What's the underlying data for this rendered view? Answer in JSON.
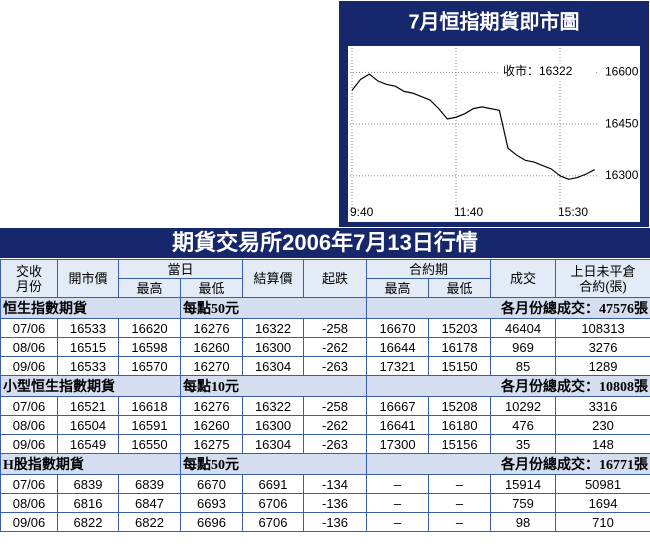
{
  "chart_data": {
    "type": "line",
    "title": "7月恒指期貨即市圖",
    "annotation": "收市：16322",
    "categories": [
      "9:40",
      null,
      null,
      null,
      null,
      null,
      null,
      null,
      null,
      null,
      null,
      null,
      "11:40",
      null,
      null,
      null,
      null,
      null,
      null,
      null,
      null,
      null,
      null,
      null,
      "15:30",
      null,
      null,
      null,
      null
    ],
    "series": [
      {
        "color": "#000000",
        "values": [
          16548,
          16580,
          16595,
          16575,
          16565,
          16560,
          16545,
          16540,
          16530,
          16520,
          16495,
          16465,
          16470,
          16480,
          16495,
          16500,
          16495,
          16490,
          16380,
          16360,
          16345,
          16340,
          16330,
          16320,
          16300,
          16290,
          16295,
          16305,
          16318
        ]
      }
    ],
    "ylim": [
      16230,
      16665
    ],
    "yticks": [
      16300,
      16450,
      16600
    ],
    "grid": true
  },
  "table": {
    "title": "期貨交易所2006年7月13日行情",
    "header": {
      "top": [
        "交收\n月份",
        "開市價",
        "當日",
        "結算價",
        "起跌",
        "合約期",
        "成交",
        "上日未平倉\n合約(張)"
      ],
      "sub": [
        "最高",
        "最低",
        "最高",
        "最低"
      ]
    },
    "sections": [
      {
        "name": "恒生指數期貨",
        "point": "每點50元",
        "total": "各月份總成交：47576張",
        "rows": [
          [
            "07/06",
            16533,
            16620,
            16276,
            16322,
            -258,
            16670,
            15203,
            46404,
            108313
          ],
          [
            "08/06",
            16515,
            16598,
            16260,
            16300,
            -262,
            16644,
            16178,
            969,
            3276
          ],
          [
            "09/06",
            16533,
            16570,
            16270,
            16304,
            -263,
            17321,
            15150,
            85,
            1289
          ]
        ]
      },
      {
        "name": "小型恒生指數期貨",
        "point": "每點10元",
        "total": "各月份總成交：10808張",
        "rows": [
          [
            "07/06",
            16521,
            16618,
            16276,
            16322,
            -258,
            16667,
            15208,
            10292,
            3316
          ],
          [
            "08/06",
            16504,
            16591,
            16260,
            16300,
            -262,
            16641,
            16180,
            476,
            230
          ],
          [
            "09/06",
            16549,
            16550,
            16275,
            16304,
            -263,
            17300,
            15156,
            35,
            148
          ]
        ]
      },
      {
        "name": "H股指數期貨",
        "point": "每點50元",
        "total": "各月份總成交：16771張",
        "rows": [
          [
            "07/06",
            6839,
            6839,
            6670,
            6691,
            -134,
            "–",
            "–",
            15914,
            50981
          ],
          [
            "08/06",
            6816,
            6847,
            6693,
            6706,
            -136,
            "–",
            "–",
            759,
            1694
          ],
          [
            "09/06",
            6822,
            6822,
            6696,
            6706,
            -136,
            "–",
            "–",
            98,
            710
          ]
        ]
      }
    ]
  }
}
